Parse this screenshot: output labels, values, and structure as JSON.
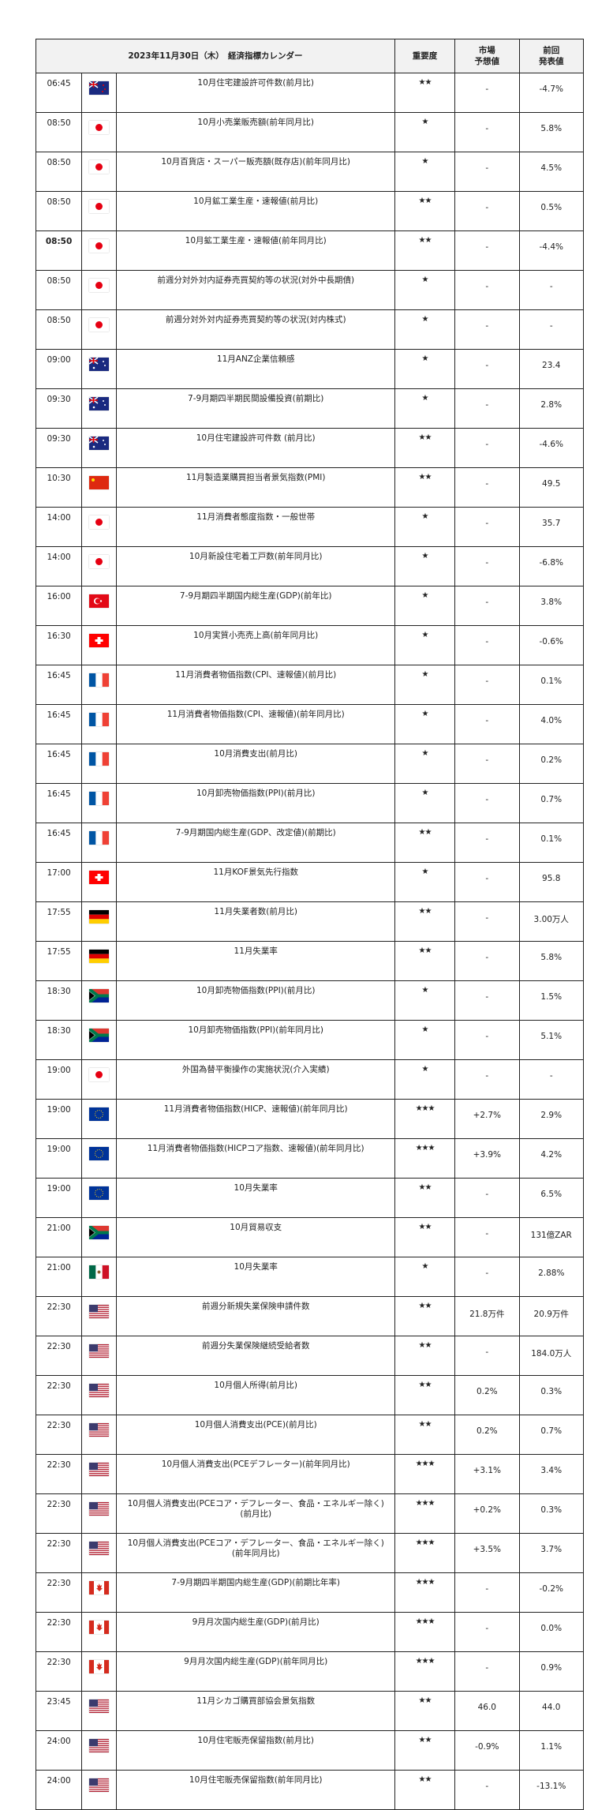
{
  "header": {
    "title": "2023年11月30日（木）　経済指標カレンダー",
    "importance": "重要度",
    "forecast": "市場\n予想値",
    "previous": "前回\n発表値"
  },
  "colors": {
    "header_bg": "#f2f2f2",
    "border": "#222222"
  },
  "rows": [
    {
      "time": "06:45",
      "flag": "nz",
      "name": "10月住宅建設許可件数(前月比)",
      "stars": "★★",
      "forecast": "-",
      "previous": "-4.7%"
    },
    {
      "time": "08:50",
      "flag": "jp",
      "name": "10月小売業販売額(前年同月比)",
      "stars": "★",
      "forecast": "-",
      "previous": "5.8%"
    },
    {
      "time": "08:50",
      "flag": "jp",
      "name": "10月百貨店・スーパー販売額(既存店)(前年同月比)",
      "stars": "★",
      "forecast": "-",
      "previous": "4.5%"
    },
    {
      "time": "08:50",
      "flag": "jp",
      "name": "10月鉱工業生産・速報値(前月比)",
      "stars": "★★",
      "forecast": "-",
      "previous": "0.5%"
    },
    {
      "time": "08:50",
      "flag": "jp",
      "name": "10月鉱工業生産・速報値(前年同月比)",
      "stars": "★★",
      "forecast": "-",
      "previous": "-4.4%",
      "bold": true
    },
    {
      "time": "08:50",
      "flag": "jp",
      "name": "前週分対外対内証券売買契約等の状況(対外中長期債)",
      "stars": "★",
      "forecast": "-",
      "previous": "-"
    },
    {
      "time": "08:50",
      "flag": "jp",
      "name": "前週分対外対内証券売買契約等の状況(対内株式)",
      "stars": "★",
      "forecast": "-",
      "previous": "-"
    },
    {
      "time": "09:00",
      "flag": "au",
      "name": "11月ANZ企業信頼感",
      "stars": "★",
      "forecast": "-",
      "previous": "23.4"
    },
    {
      "time": "09:30",
      "flag": "au",
      "name": "7-9月期四半期民間設備投資(前期比)",
      "stars": "★",
      "forecast": "-",
      "previous": "2.8%"
    },
    {
      "time": "09:30",
      "flag": "au",
      "name": "10月住宅建設許可件数 (前月比)",
      "stars": "★★",
      "forecast": "-",
      "previous": "-4.6%"
    },
    {
      "time": "10:30",
      "flag": "cn",
      "name": "11月製造業購買担当者景気指数(PMI)",
      "stars": "★★",
      "forecast": "-",
      "previous": "49.5"
    },
    {
      "time": "14:00",
      "flag": "jp",
      "name": "11月消費者態度指数・一般世帯",
      "stars": "★",
      "forecast": "-",
      "previous": "35.7"
    },
    {
      "time": "14:00",
      "flag": "jp",
      "name": "10月新設住宅着工戸数(前年同月比)",
      "stars": "★",
      "forecast": "-",
      "previous": "-6.8%"
    },
    {
      "time": "16:00",
      "flag": "tr",
      "name": "7-9月期四半期国内総生産(GDP)(前年比)",
      "stars": "★",
      "forecast": "-",
      "previous": "3.8%"
    },
    {
      "time": "16:30",
      "flag": "ch",
      "name": "10月実質小売売上高(前年同月比)",
      "stars": "★",
      "forecast": "-",
      "previous": "-0.6%"
    },
    {
      "time": "16:45",
      "flag": "fr",
      "name": "11月消費者物価指数(CPI、速報値)(前月比)",
      "stars": "★",
      "forecast": "-",
      "previous": "0.1%"
    },
    {
      "time": "16:45",
      "flag": "fr",
      "name": "11月消費者物価指数(CPI、速報値)(前年同月比)",
      "stars": "★",
      "forecast": "-",
      "previous": "4.0%"
    },
    {
      "time": "16:45",
      "flag": "fr",
      "name": "10月消費支出(前月比)",
      "stars": "★",
      "forecast": "-",
      "previous": "0.2%"
    },
    {
      "time": "16:45",
      "flag": "fr",
      "name": "10月卸売物価指数(PPI)(前月比)",
      "stars": "★",
      "forecast": "-",
      "previous": "0.7%"
    },
    {
      "time": "16:45",
      "flag": "fr",
      "name": "7-9月期国内総生産(GDP、改定値)(前期比)",
      "stars": "★★",
      "forecast": "-",
      "previous": "0.1%"
    },
    {
      "time": "17:00",
      "flag": "ch",
      "name": "11月KOF景気先行指数",
      "stars": "★",
      "forecast": "-",
      "previous": "95.8"
    },
    {
      "time": "17:55",
      "flag": "de",
      "name": "11月失業者数(前月比)",
      "stars": "★★",
      "forecast": "-",
      "previous": "3.00万人"
    },
    {
      "time": "17:55",
      "flag": "de",
      "name": "11月失業率",
      "stars": "★★",
      "forecast": "-",
      "previous": "5.8%"
    },
    {
      "time": "18:30",
      "flag": "za",
      "name": "10月卸売物価指数(PPI)(前月比)",
      "stars": "★",
      "forecast": "-",
      "previous": "1.5%"
    },
    {
      "time": "18:30",
      "flag": "za",
      "name": "10月卸売物価指数(PPI)(前年同月比)",
      "stars": "★",
      "forecast": "-",
      "previous": "5.1%"
    },
    {
      "time": "19:00",
      "flag": "jp",
      "name": "外国為替平衡操作の実施状況(介入実績)",
      "stars": "★",
      "forecast": "-",
      "previous": "-"
    },
    {
      "time": "19:00",
      "flag": "eu",
      "name": "11月消費者物価指数(HICP、速報値)(前年同月比)",
      "stars": "★★★",
      "forecast": "+2.7%",
      "previous": "2.9%"
    },
    {
      "time": "19:00",
      "flag": "eu",
      "name": "11月消費者物価指数(HICPコア指数、速報値)(前年同月比)",
      "stars": "★★★",
      "forecast": "+3.9%",
      "previous": "4.2%"
    },
    {
      "time": "19:00",
      "flag": "eu",
      "name": "10月失業率",
      "stars": "★★",
      "forecast": "-",
      "previous": "6.5%"
    },
    {
      "time": "21:00",
      "flag": "za",
      "name": "10月貿易収支",
      "stars": "★★",
      "forecast": "-",
      "previous": "131億ZAR"
    },
    {
      "time": "21:00",
      "flag": "mx",
      "name": "10月失業率",
      "stars": "★",
      "forecast": "-",
      "previous": "2.88%"
    },
    {
      "time": "22:30",
      "flag": "us",
      "name": "前週分新規失業保険申請件数",
      "stars": "★★",
      "forecast": "21.8万件",
      "previous": "20.9万件"
    },
    {
      "time": "22:30",
      "flag": "us",
      "name": "前週分失業保険継続受給者数",
      "stars": "★★",
      "forecast": "-",
      "previous": "184.0万人"
    },
    {
      "time": "22:30",
      "flag": "us",
      "name": "10月個人所得(前月比)",
      "stars": "★★",
      "forecast": "0.2%",
      "previous": "0.3%"
    },
    {
      "time": "22:30",
      "flag": "us",
      "name": "10月個人消費支出(PCE)(前月比)",
      "stars": "★★",
      "forecast": "0.2%",
      "previous": "0.7%"
    },
    {
      "time": "22:30",
      "flag": "us",
      "name": "10月個人消費支出(PCEデフレーター)(前年同月比)",
      "stars": "★★★",
      "forecast": "+3.1%",
      "previous": "3.4%"
    },
    {
      "time": "22:30",
      "flag": "us",
      "name": "10月個人消費支出(PCEコア・デフレーター、食品・エネルギー除く)(前月比)",
      "stars": "★★★",
      "forecast": "+0.2%",
      "previous": "0.3%"
    },
    {
      "time": "22:30",
      "flag": "us",
      "name": "10月個人消費支出(PCEコア・デフレーター、食品・エネルギー除く)(前年同月比)",
      "stars": "★★★",
      "forecast": "+3.5%",
      "previous": "3.7%"
    },
    {
      "time": "22:30",
      "flag": "ca",
      "name": "7-9月期四半期国内総生産(GDP)(前期比年率)",
      "stars": "★★★",
      "forecast": "-",
      "previous": "-0.2%"
    },
    {
      "time": "22:30",
      "flag": "ca",
      "name": "9月月次国内総生産(GDP)(前月比)",
      "stars": "★★★",
      "forecast": "-",
      "previous": "0.0%"
    },
    {
      "time": "22:30",
      "flag": "ca",
      "name": "9月月次国内総生産(GDP)(前年同月比)",
      "stars": "★★★",
      "forecast": "-",
      "previous": "0.9%"
    },
    {
      "time": "23:45",
      "flag": "us",
      "name": "11月シカゴ購買部協会景気指数",
      "stars": "★★",
      "forecast": "46.0",
      "previous": "44.0"
    },
    {
      "time": "24:00",
      "flag": "us",
      "name": "10月住宅販売保留指数(前月比)",
      "stars": "★★",
      "forecast": "-0.9%",
      "previous": "1.1%"
    },
    {
      "time": "24:00",
      "flag": "us",
      "name": "10月住宅販売保留指数(前年同月比)",
      "stars": "★★",
      "forecast": "-",
      "previous": "-13.1%"
    }
  ]
}
